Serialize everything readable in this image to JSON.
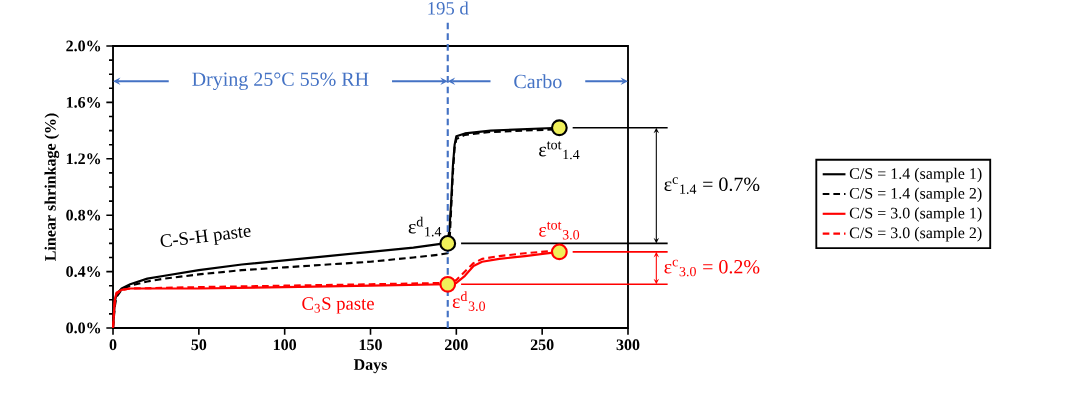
{
  "chart_data": {
    "type": "line",
    "xlabel": "Days",
    "ylabel": "Linear shrinkage (%)",
    "xlim": [
      0,
      300
    ],
    "xticks": [
      0,
      50,
      100,
      150,
      200,
      250,
      300
    ],
    "ylim": [
      0,
      2.0
    ],
    "yticks": [
      {
        "value": 0,
        "label": "0.0%"
      },
      {
        "value": 0.4,
        "label": "0.4%"
      },
      {
        "value": 0.8,
        "label": "0.8%"
      },
      {
        "value": 1.2,
        "label": "1.2%"
      },
      {
        "value": 1.6,
        "label": "1.6%"
      },
      {
        "value": 2.0,
        "label": "2.0%"
      }
    ],
    "legend": "right",
    "marker": "none",
    "series": [
      {
        "name": "C/S = 1.4 (sample 1)",
        "color": "#000000",
        "line_style": "solid",
        "x": [
          0,
          1,
          2,
          5,
          10,
          20,
          30,
          50,
          75,
          100,
          125,
          150,
          175,
          193,
          195,
          196,
          197,
          198,
          199,
          200,
          205,
          220,
          240,
          260
        ],
        "values": [
          0,
          0.18,
          0.24,
          0.28,
          0.31,
          0.35,
          0.37,
          0.41,
          0.45,
          0.48,
          0.51,
          0.54,
          0.57,
          0.6,
          0.62,
          0.7,
          0.9,
          1.15,
          1.3,
          1.36,
          1.38,
          1.4,
          1.41,
          1.42
        ]
      },
      {
        "name": "C/S = 1.4 (sample 2)",
        "color": "#000000",
        "line_style": "dashed",
        "x": [
          0,
          1,
          2,
          5,
          10,
          20,
          30,
          50,
          75,
          100,
          125,
          150,
          175,
          190,
          195,
          196,
          197,
          198,
          199,
          200,
          205,
          220,
          240,
          260
        ],
        "values": [
          0,
          0.15,
          0.22,
          0.27,
          0.3,
          0.33,
          0.35,
          0.38,
          0.41,
          0.43,
          0.45,
          0.47,
          0.5,
          0.52,
          0.53,
          0.6,
          0.85,
          1.1,
          1.28,
          1.34,
          1.37,
          1.39,
          1.4,
          1.41
        ]
      },
      {
        "name": "C/S = 3.0 (sample 1)",
        "color": "#ff0000",
        "line_style": "solid",
        "x": [
          0,
          1,
          2,
          5,
          10,
          50,
          100,
          150,
          195,
          200,
          205,
          210,
          215,
          225,
          240,
          260
        ],
        "values": [
          0,
          0.2,
          0.25,
          0.27,
          0.28,
          0.28,
          0.29,
          0.3,
          0.31,
          0.32,
          0.37,
          0.44,
          0.47,
          0.49,
          0.51,
          0.54
        ]
      },
      {
        "name": "C/S = 3.0 (sample 2)",
        "color": "#ff0000",
        "line_style": "dashed",
        "x": [
          0,
          1,
          2,
          5,
          10,
          50,
          100,
          150,
          195,
          200,
          205,
          210,
          215,
          225,
          240,
          260
        ],
        "values": [
          0,
          0.18,
          0.24,
          0.27,
          0.28,
          0.29,
          0.3,
          0.31,
          0.32,
          0.34,
          0.4,
          0.46,
          0.49,
          0.51,
          0.53,
          0.55
        ]
      },
      {
        "type": "scatter",
        "marker": "circle",
        "color": "#000000",
        "x": [
          195,
          260
        ],
        "values": [
          0.6,
          1.42
        ]
      },
      {
        "type": "scatter",
        "marker": "circle",
        "color": "#ff0000",
        "x": [
          195,
          260
        ],
        "values": [
          0.31,
          0.54
        ]
      }
    ],
    "ref_lines": [
      {
        "axis": "x",
        "value": 195,
        "label": "195 d",
        "color": "#4472c4",
        "line_style": "dashed"
      }
    ],
    "annotations": [
      "Drying 25°C 55% RH",
      "Carbo",
      "ε$^{c}$$_{1.4}$ = 0.7%",
      "ε$^{c}$$_{3.0}$ = 0.2%",
      "C-S-H paste",
      "C$_{3}$S paste",
      "ε$^{d}$$_{1.4}$",
      "ε$^{tot}$$_{1.4}$",
      "ε$^{tot}$$_{3.0}$",
      "ε$^{d}$$_{3.0}$"
    ]
  }
}
